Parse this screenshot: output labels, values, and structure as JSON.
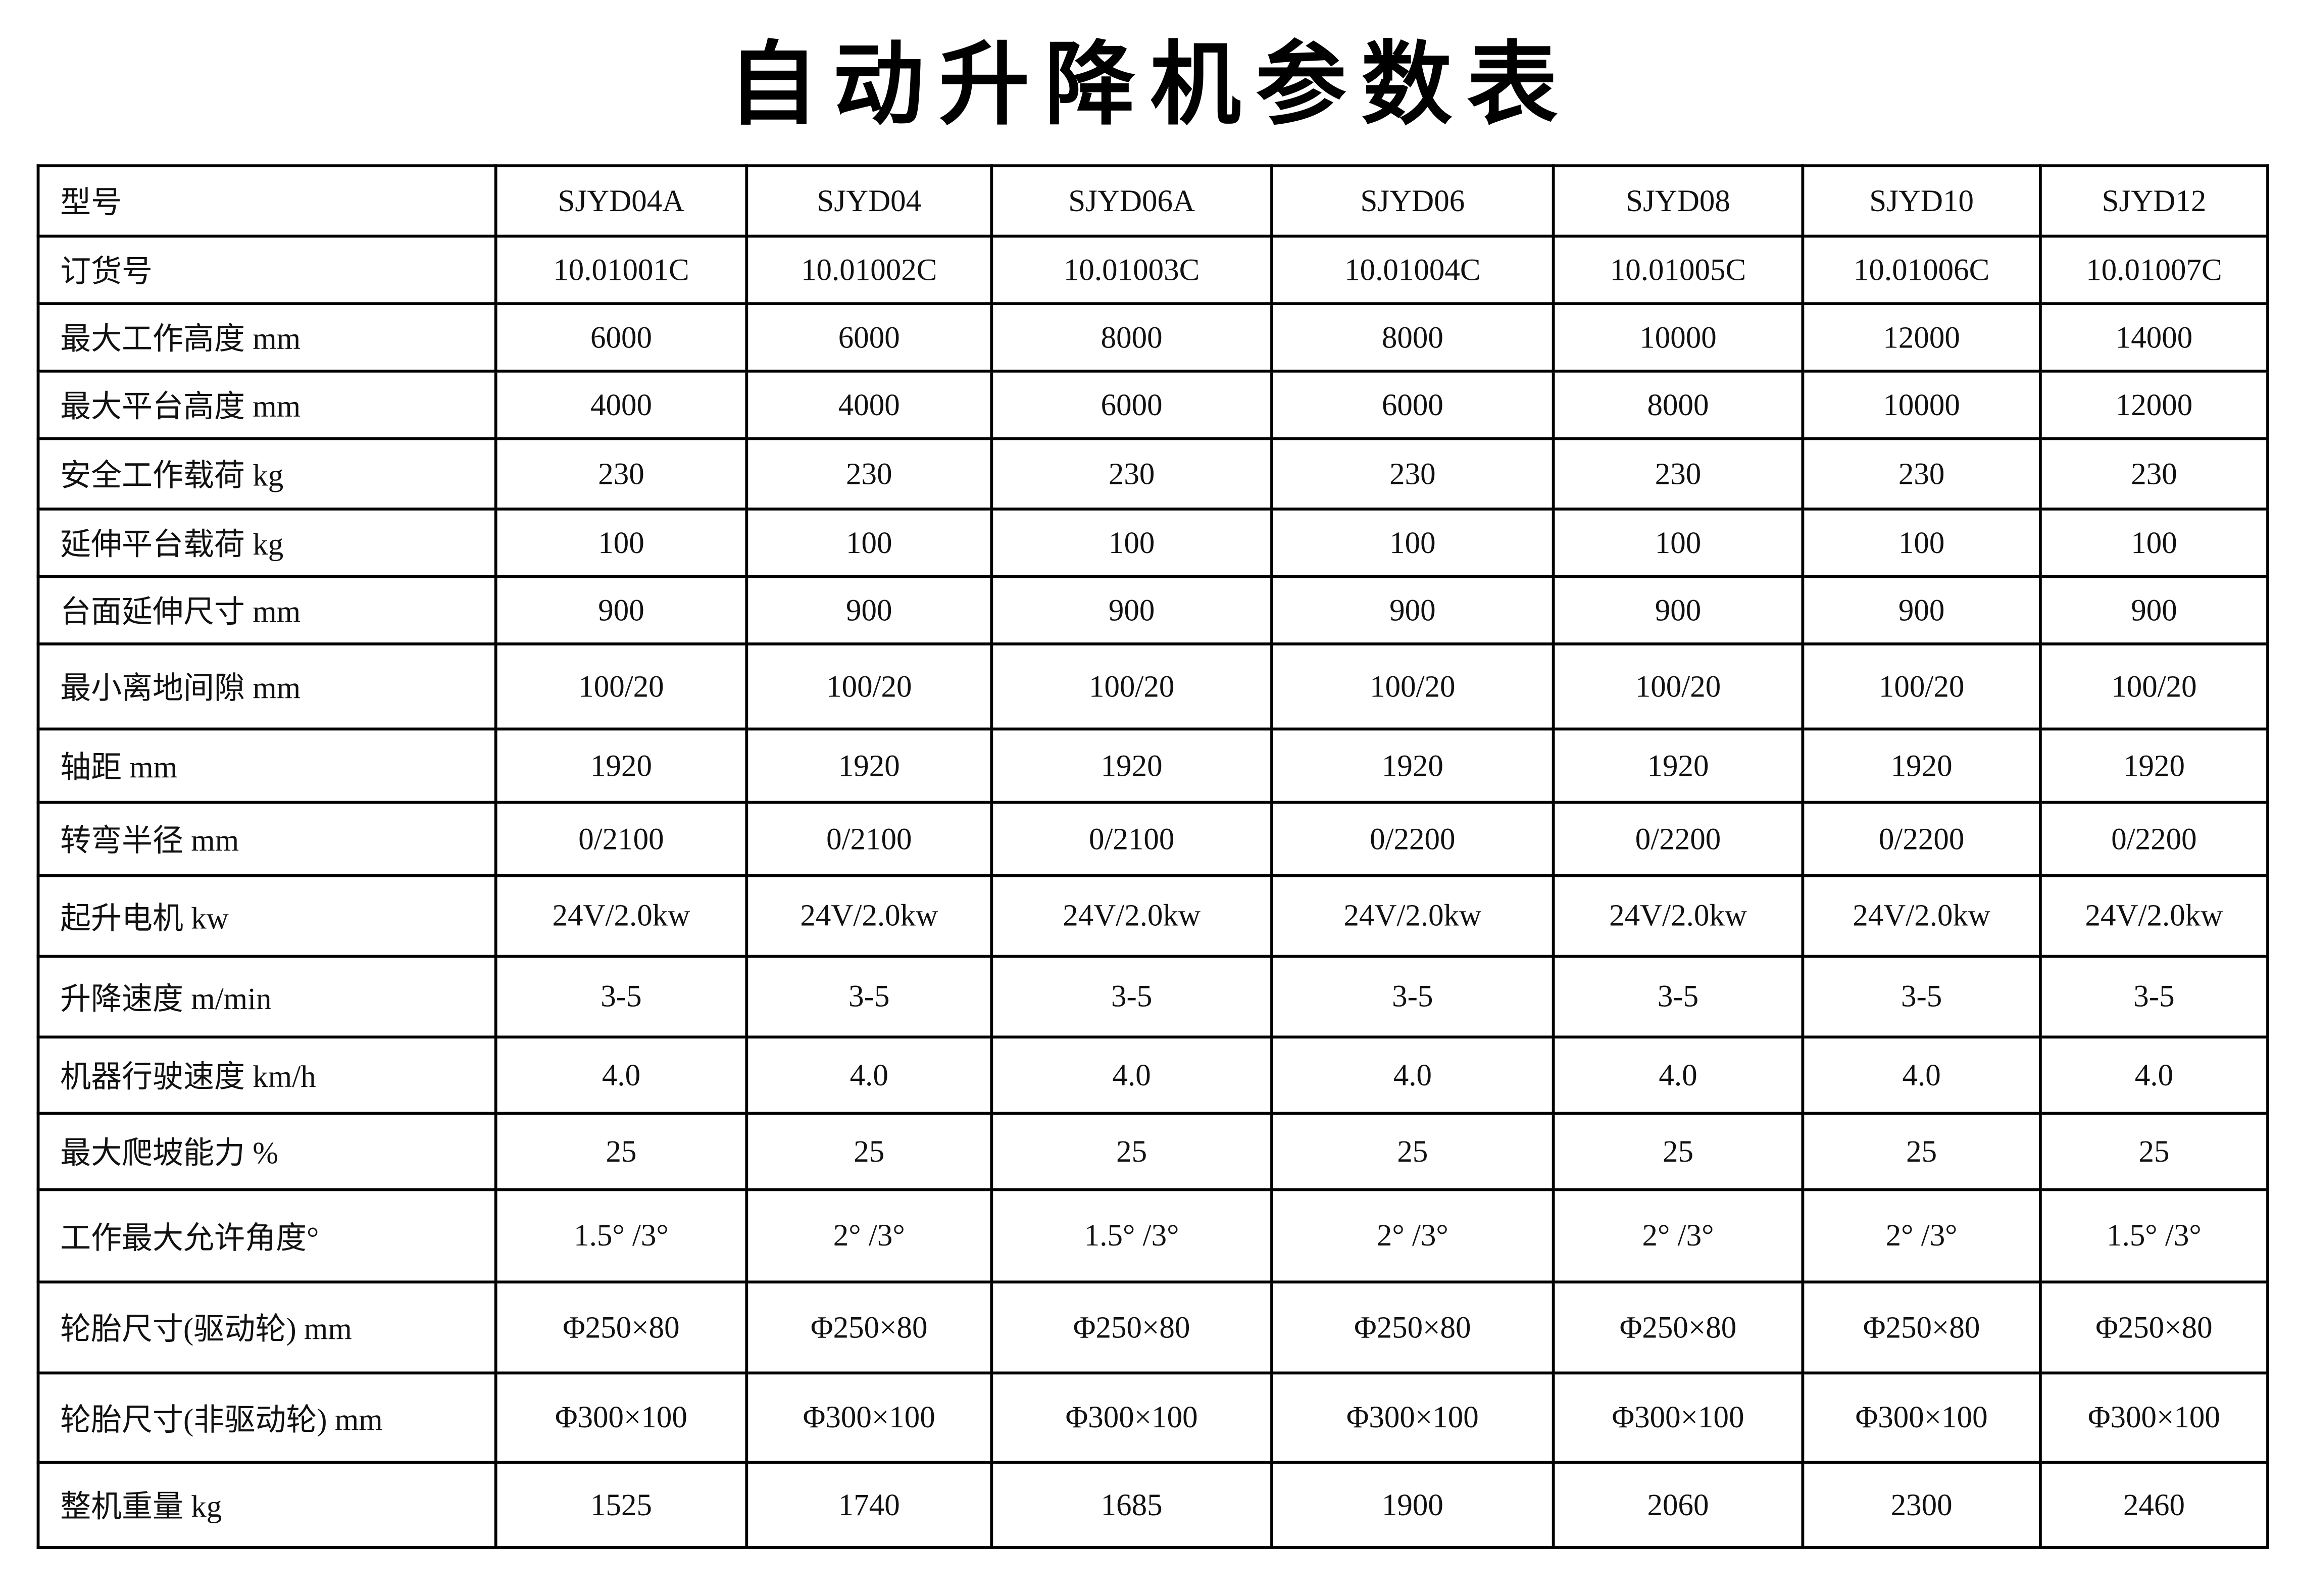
{
  "title": "自动升降机参数表",
  "table": {
    "rows": [
      {
        "label": "型号",
        "values": [
          "SJYD04A",
          "SJYD04",
          "SJYD06A",
          "SJYD06",
          "SJYD08",
          "SJYD10",
          "SJYD12"
        ]
      },
      {
        "label": "订货号",
        "values": [
          "10.01001C",
          "10.01002C",
          "10.01003C",
          "10.01004C",
          "10.01005C",
          "10.01006C",
          "10.01007C"
        ]
      },
      {
        "label": "最大工作高度 mm",
        "values": [
          "6000",
          "6000",
          "8000",
          "8000",
          "10000",
          "12000",
          "14000"
        ]
      },
      {
        "label": "最大平台高度 mm",
        "values": [
          "4000",
          "4000",
          "6000",
          "6000",
          "8000",
          "10000",
          "12000"
        ]
      },
      {
        "label": "安全工作载荷 kg",
        "values": [
          "230",
          "230",
          "230",
          "230",
          "230",
          "230",
          "230"
        ]
      },
      {
        "label": "延伸平台载荷 kg",
        "values": [
          "100",
          "100",
          "100",
          "100",
          "100",
          "100",
          "100"
        ]
      },
      {
        "label": "台面延伸尺寸 mm",
        "values": [
          "900",
          "900",
          "900",
          "900",
          "900",
          "900",
          "900"
        ]
      },
      {
        "label": "最小离地间隙 mm",
        "values": [
          "100/20",
          "100/20",
          "100/20",
          "100/20",
          "100/20",
          "100/20",
          "100/20"
        ]
      },
      {
        "label": "轴距 mm",
        "values": [
          "1920",
          "1920",
          "1920",
          "1920",
          "1920",
          "1920",
          "1920"
        ]
      },
      {
        "label": "转弯半径 mm",
        "values": [
          "0/2100",
          "0/2100",
          "0/2100",
          "0/2200",
          "0/2200",
          "0/2200",
          "0/2200"
        ]
      },
      {
        "label": "起升电机 kw",
        "values": [
          "24V/2.0kw",
          "24V/2.0kw",
          "24V/2.0kw",
          "24V/2.0kw",
          "24V/2.0kw",
          "24V/2.0kw",
          "24V/2.0kw"
        ]
      },
      {
        "label": "升降速度  m/min",
        "values": [
          "3-5",
          "3-5",
          "3-5",
          "3-5",
          "3-5",
          "3-5",
          "3-5"
        ]
      },
      {
        "label": "机器行驶速度 km/h",
        "values": [
          "4.0",
          "4.0",
          "4.0",
          "4.0",
          "4.0",
          "4.0",
          "4.0"
        ]
      },
      {
        "label": "最大爬坡能力  %",
        "values": [
          "25",
          "25",
          "25",
          "25",
          "25",
          "25",
          "25"
        ]
      },
      {
        "label": "工作最大允许角度°",
        "values": [
          "1.5° /3°",
          "2° /3°",
          "1.5° /3°",
          "2° /3°",
          "2° /3°",
          "2° /3°",
          "1.5° /3°"
        ]
      },
      {
        "label": "轮胎尺寸(驱动轮) mm",
        "values": [
          "Φ250×80",
          "Φ250×80",
          "Φ250×80",
          "Φ250×80",
          "Φ250×80",
          "Φ250×80",
          "Φ250×80"
        ]
      },
      {
        "label": "轮胎尺寸(非驱动轮)  mm",
        "values": [
          "Φ300×100",
          "Φ300×100",
          "Φ300×100",
          "Φ300×100",
          "Φ300×100",
          "Φ300×100",
          "Φ300×100"
        ]
      },
      {
        "label": "整机重量  kg",
        "values": [
          "1525",
          "1740",
          "1685",
          "1900",
          "2060",
          "2300",
          "2460"
        ]
      }
    ]
  }
}
